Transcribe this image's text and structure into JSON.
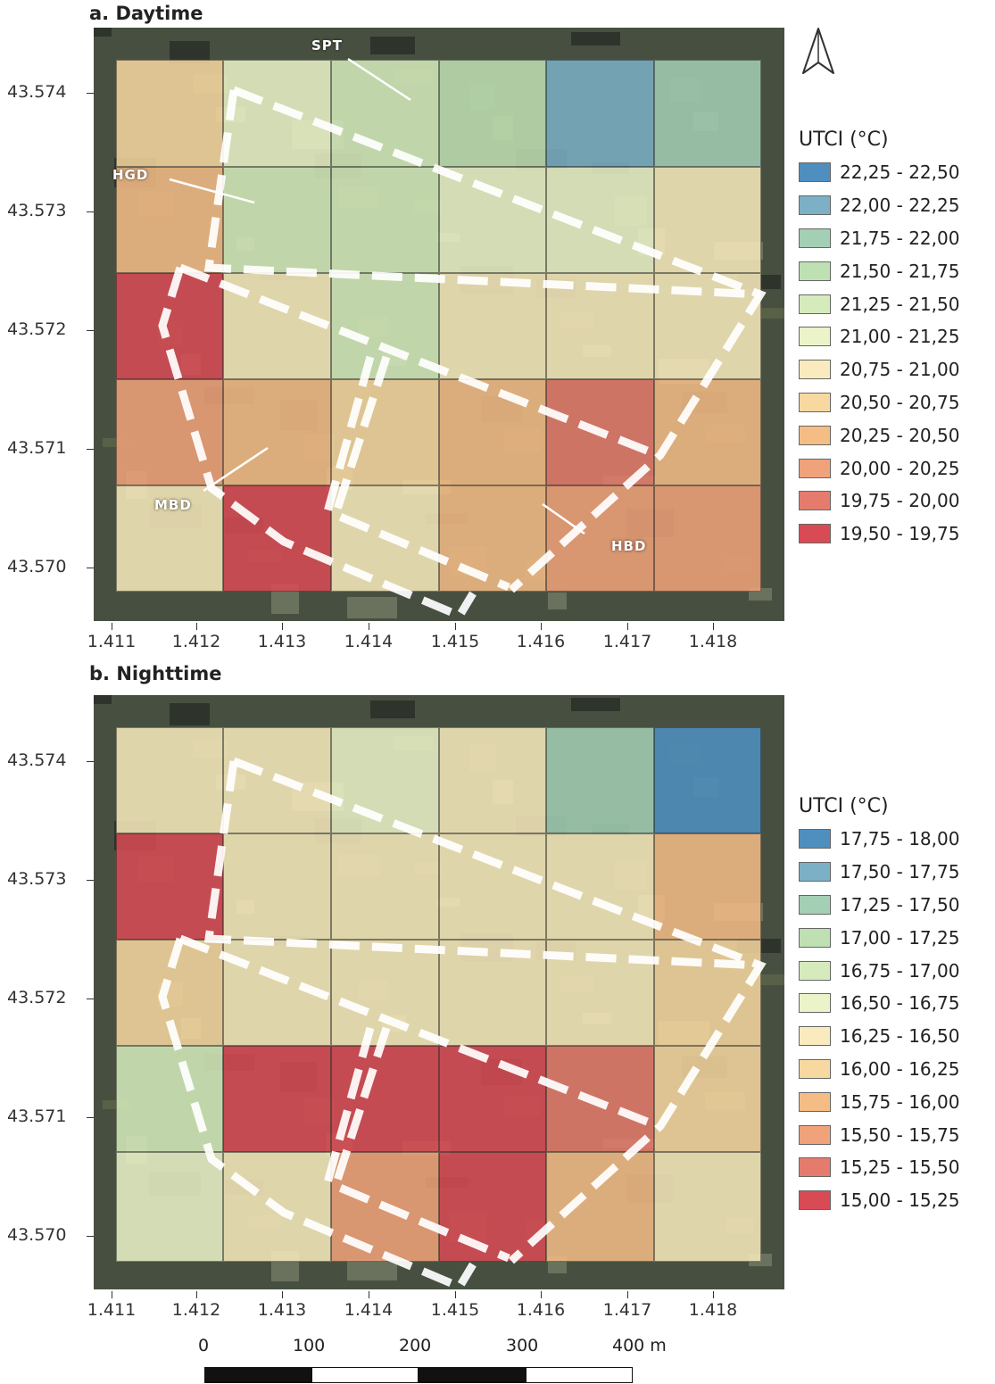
{
  "panel_a": {
    "title": "a. Daytime",
    "legend_title": "UTCI (°C)",
    "legend": [
      {
        "label": "22,25 - 22,50",
        "color": "#4e8fc0"
      },
      {
        "label": "22,00 - 22,25",
        "color": "#7bb0c6"
      },
      {
        "label": "21,75 - 22,00",
        "color": "#a3cfb5"
      },
      {
        "label": "21,50 - 21,75",
        "color": "#bfe0b2"
      },
      {
        "label": "21,25 - 21,50",
        "color": "#d6ebbc"
      },
      {
        "label": "21,00 - 21,25",
        "color": "#ebf4c8"
      },
      {
        "label": "20,75 - 21,00",
        "color": "#f9ebbd"
      },
      {
        "label": "20,50 - 20,75",
        "color": "#f7d8a0"
      },
      {
        "label": "20,25 - 20,50",
        "color": "#f5bd86"
      },
      {
        "label": "20,00 - 20,25",
        "color": "#f0a27a"
      },
      {
        "label": "19,75 - 20,00",
        "color": "#e57b6c"
      },
      {
        "label": "19,50 - 19,75",
        "color": "#d94b54"
      }
    ],
    "grid": [
      [
        7,
        5,
        4,
        3,
        1,
        2
      ],
      [
        8,
        4,
        4,
        5,
        5,
        6
      ],
      [
        11,
        6,
        4,
        6,
        6,
        6
      ],
      [
        9,
        8,
        7,
        8,
        10,
        8
      ],
      [
        6,
        11,
        6,
        8,
        9,
        9
      ]
    ],
    "labels": [
      "SPT",
      "HGD",
      "MBD",
      "HBD"
    ]
  },
  "panel_b": {
    "title": "b. Nighttime",
    "legend_title": "UTCI (°C)",
    "legend": [
      {
        "label": "17,75 - 18,00",
        "color": "#4e8fc0"
      },
      {
        "label": "17,50 - 17,75",
        "color": "#7bb0c6"
      },
      {
        "label": "17,25 - 17,50",
        "color": "#a3cfb5"
      },
      {
        "label": "17,00 - 17,25",
        "color": "#bfe0b2"
      },
      {
        "label": "16,75 - 17,00",
        "color": "#d6ebbc"
      },
      {
        "label": "16,50 - 16,75",
        "color": "#ebf4c8"
      },
      {
        "label": "16,25 - 16,50",
        "color": "#f9ebbd"
      },
      {
        "label": "16,00 - 16,25",
        "color": "#f7d8a0"
      },
      {
        "label": "15,75 - 16,00",
        "color": "#f5bd86"
      },
      {
        "label": "15,50 - 15,75",
        "color": "#f0a27a"
      },
      {
        "label": "15,25 - 15,50",
        "color": "#e57b6c"
      },
      {
        "label": "15,00 - 15,25",
        "color": "#d94b54"
      }
    ],
    "grid": [
      [
        6,
        6,
        5,
        6,
        2,
        0
      ],
      [
        11,
        6,
        6,
        6,
        6,
        8
      ],
      [
        7,
        6,
        6,
        6,
        6,
        7
      ],
      [
        4,
        11,
        11,
        11,
        10,
        7
      ],
      [
        5,
        6,
        9,
        11,
        8,
        6
      ]
    ]
  },
  "x_ticks": [
    "1.411",
    "1.412",
    "1.413",
    "1.414",
    "1.415",
    "1.416",
    "1.417",
    "1.418"
  ],
  "y_ticks": [
    "43.574",
    "43.573",
    "43.572",
    "43.571",
    "43.570"
  ],
  "north_arrow": "north-arrow-icon",
  "scale_bar": {
    "labels": [
      "0",
      "100",
      "200",
      "300",
      "400 m"
    ]
  }
}
